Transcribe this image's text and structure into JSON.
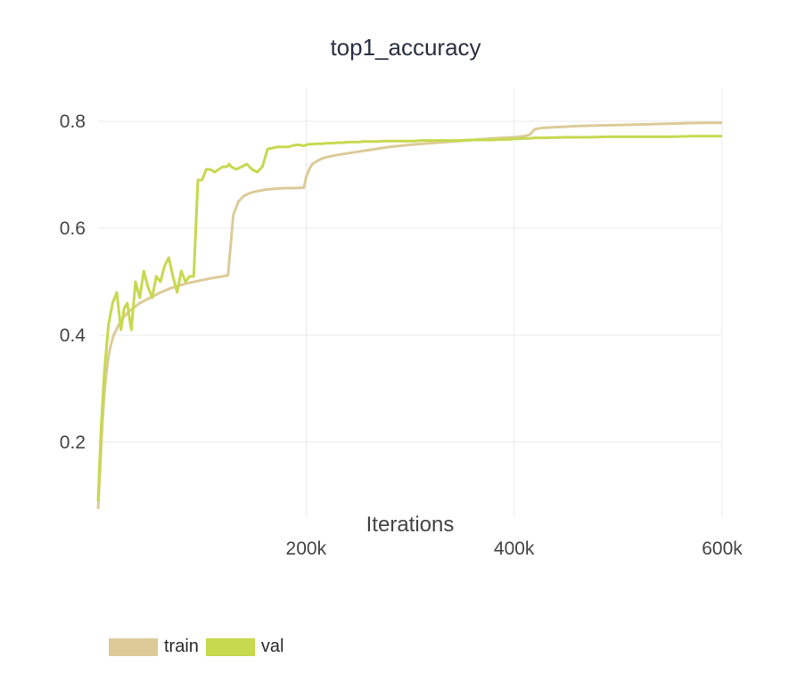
{
  "chart_data": {
    "type": "line",
    "title": "top1_accuracy",
    "xlabel": "Iterations",
    "ylabel": "",
    "xlim": [
      0,
      600000
    ],
    "ylim": [
      0.06,
      0.86
    ],
    "x_ticks": [
      200000,
      400000,
      600000
    ],
    "x_tick_labels": [
      "200k",
      "400k",
      "600k"
    ],
    "y_ticks": [
      0.2,
      0.4,
      0.6,
      0.8
    ],
    "y_tick_labels": [
      "0.2",
      "0.4",
      "0.6",
      "0.8"
    ],
    "grid": true,
    "legend_position": "bottom-left",
    "series": [
      {
        "name": "train",
        "color": "#dccb99",
        "x": [
          0,
          2000,
          4000,
          6000,
          8000,
          10000,
          12000,
          15000,
          20000,
          25000,
          30000,
          40000,
          50000,
          60000,
          70000,
          80000,
          90000,
          100000,
          110000,
          120000,
          125000,
          130000,
          135000,
          140000,
          145000,
          150000,
          160000,
          170000,
          180000,
          190000,
          198000,
          200000,
          203000,
          206000,
          210000,
          215000,
          220000,
          230000,
          240000,
          250000,
          260000,
          270000,
          280000,
          290000,
          300000,
          320000,
          340000,
          360000,
          380000,
          400000,
          410000,
          415000,
          420000,
          425000,
          430000,
          440000,
          460000,
          480000,
          500000,
          520000,
          540000,
          560000,
          580000,
          600000
        ],
        "y": [
          0.075,
          0.15,
          0.23,
          0.29,
          0.33,
          0.36,
          0.38,
          0.4,
          0.42,
          0.435,
          0.445,
          0.46,
          0.47,
          0.48,
          0.488,
          0.494,
          0.499,
          0.503,
          0.507,
          0.51,
          0.512,
          0.625,
          0.65,
          0.66,
          0.665,
          0.668,
          0.672,
          0.674,
          0.675,
          0.675,
          0.676,
          0.695,
          0.71,
          0.72,
          0.725,
          0.73,
          0.733,
          0.737,
          0.74,
          0.743,
          0.746,
          0.749,
          0.752,
          0.754,
          0.756,
          0.759,
          0.762,
          0.765,
          0.768,
          0.77,
          0.772,
          0.775,
          0.785,
          0.787,
          0.788,
          0.789,
          0.791,
          0.792,
          0.793,
          0.794,
          0.795,
          0.796,
          0.797,
          0.797
        ]
      },
      {
        "name": "val",
        "color": "#c6d94f",
        "x": [
          0,
          3000,
          6000,
          10000,
          14000,
          18000,
          22000,
          25000,
          28000,
          32000,
          36000,
          40000,
          44000,
          48000,
          52000,
          56000,
          60000,
          64000,
          68000,
          72000,
          76000,
          80000,
          84000,
          88000,
          92000,
          96000,
          100000,
          104000,
          108000,
          112000,
          116000,
          120000,
          124000,
          126000,
          128000,
          133000,
          138000,
          143000,
          148000,
          153000,
          158000,
          163000,
          168000,
          173000,
          178000,
          183000,
          188000,
          193000,
          198000,
          200000,
          202000,
          205000,
          210000,
          215000,
          220000,
          225000,
          230000,
          235000,
          240000,
          245000,
          250000,
          255000,
          260000,
          265000,
          270000,
          275000,
          280000,
          285000,
          290000,
          295000,
          300000,
          305000,
          310000,
          315000,
          320000,
          325000,
          330000,
          335000,
          340000,
          345000,
          350000,
          355000,
          360000,
          365000,
          370000,
          375000,
          380000,
          385000,
          390000,
          395000,
          400000,
          405000,
          410000,
          415000,
          420000,
          425000,
          430000,
          450000,
          470000,
          490000,
          510000,
          530000,
          550000,
          570000,
          590000,
          600000
        ],
        "y": [
          0.09,
          0.23,
          0.33,
          0.42,
          0.46,
          0.48,
          0.41,
          0.45,
          0.46,
          0.41,
          0.5,
          0.47,
          0.52,
          0.49,
          0.47,
          0.51,
          0.5,
          0.53,
          0.545,
          0.51,
          0.48,
          0.52,
          0.5,
          0.51,
          0.51,
          0.69,
          0.69,
          0.71,
          0.71,
          0.705,
          0.71,
          0.715,
          0.715,
          0.72,
          0.715,
          0.71,
          0.715,
          0.72,
          0.71,
          0.705,
          0.715,
          0.748,
          0.75,
          0.752,
          0.752,
          0.752,
          0.755,
          0.756,
          0.754,
          0.756,
          0.757,
          0.757,
          0.758,
          0.758,
          0.759,
          0.759,
          0.76,
          0.76,
          0.761,
          0.761,
          0.761,
          0.762,
          0.762,
          0.762,
          0.762,
          0.763,
          0.763,
          0.763,
          0.763,
          0.763,
          0.763,
          0.763,
          0.764,
          0.764,
          0.764,
          0.764,
          0.764,
          0.764,
          0.764,
          0.764,
          0.764,
          0.765,
          0.765,
          0.765,
          0.765,
          0.765,
          0.765,
          0.766,
          0.766,
          0.766,
          0.767,
          0.767,
          0.768,
          0.768,
          0.769,
          0.769,
          0.769,
          0.77,
          0.77,
          0.771,
          0.771,
          0.771,
          0.771,
          0.772,
          0.772,
          0.772
        ]
      }
    ]
  }
}
